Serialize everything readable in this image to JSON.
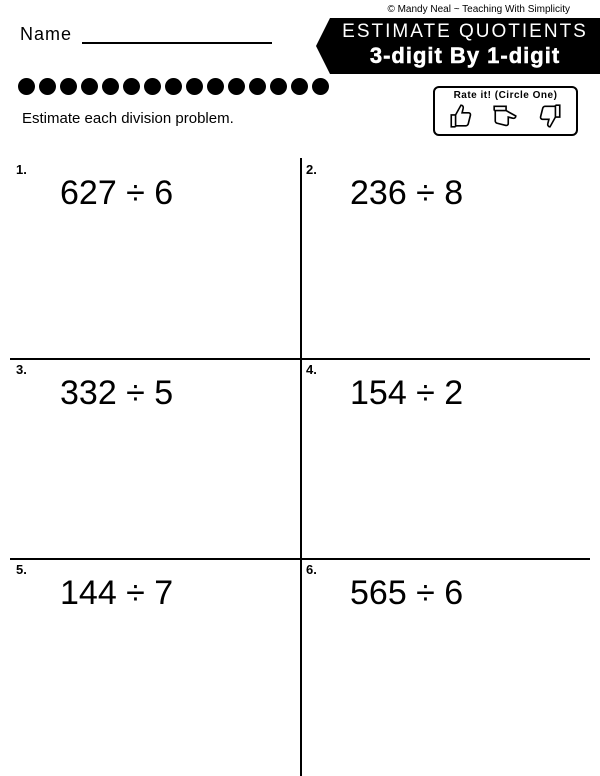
{
  "copyright": "© Mandy Neal ~ Teaching With Simplicity",
  "name_label": "Name",
  "title": {
    "line1": "ESTIMATE QUOTIENTS",
    "line2": "3-digit By 1-digit"
  },
  "instructions": "Estimate each division problem.",
  "rate_label": "Rate it! (Circle One)",
  "dot_count": 15,
  "problems": [
    {
      "num": "1.",
      "expr": "627 ÷ 6"
    },
    {
      "num": "2.",
      "expr": "236 ÷ 8"
    },
    {
      "num": "3.",
      "expr": "332 ÷ 5"
    },
    {
      "num": "4.",
      "expr": "154 ÷ 2"
    },
    {
      "num": "5.",
      "expr": "144 ÷ 7"
    },
    {
      "num": "6.",
      "expr": "565 ÷ 6"
    }
  ],
  "colors": {
    "bg": "#ffffff",
    "fg": "#000000"
  }
}
